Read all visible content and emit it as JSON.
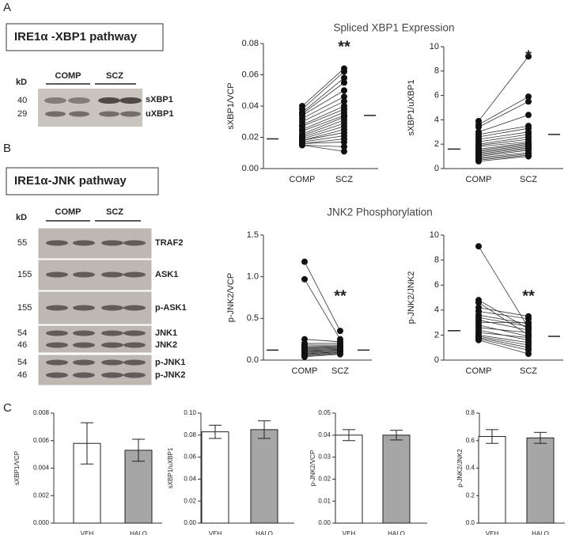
{
  "figure": {
    "panels": [
      "A",
      "B",
      "C"
    ],
    "pathway_titles": [
      "IRE1α -XBP1 pathway",
      "IRE1α-JNK pathway"
    ],
    "section_titles": [
      "Spliced XBP1 Expression",
      "JNK2 Phosphorylation"
    ],
    "blot_a": {
      "kd": "kD",
      "groups": [
        "COMP",
        "SCZ"
      ],
      "markers": [
        "40",
        "29"
      ],
      "bands": [
        "sXBP1",
        "uXBP1"
      ]
    },
    "blot_b": {
      "kd": "kD",
      "groups": [
        "COMP",
        "SCZ"
      ],
      "markers": [
        "55",
        "155",
        "155",
        "54",
        "46",
        "54",
        "46"
      ],
      "bands": [
        "TRAF2",
        "ASK1",
        "p-ASK1",
        "JNK1",
        "JNK2",
        "p-JNK1",
        "p-JNK2"
      ]
    }
  },
  "chart_data": [
    {
      "type": "paired",
      "ylabel": "sXBP1/VCP",
      "categories": [
        "COMP",
        "SCZ"
      ],
      "pairs": [
        [
          0.04,
          0.064
        ],
        [
          0.038,
          0.062
        ],
        [
          0.036,
          0.058
        ],
        [
          0.035,
          0.055
        ],
        [
          0.034,
          0.05
        ],
        [
          0.032,
          0.046
        ],
        [
          0.03,
          0.043
        ],
        [
          0.028,
          0.04
        ],
        [
          0.027,
          0.038
        ],
        [
          0.025,
          0.036
        ],
        [
          0.024,
          0.034
        ],
        [
          0.022,
          0.033
        ],
        [
          0.021,
          0.031
        ],
        [
          0.02,
          0.029
        ],
        [
          0.019,
          0.027
        ],
        [
          0.018,
          0.025
        ],
        [
          0.018,
          0.023
        ],
        [
          0.017,
          0.021
        ],
        [
          0.016,
          0.019
        ],
        [
          0.016,
          0.017
        ],
        [
          0.015,
          0.014
        ],
        [
          0.015,
          0.011
        ]
      ],
      "means": [
        0.019,
        0.034
      ],
      "significance": "**",
      "ylim": [
        0,
        0.08
      ],
      "yticks": [
        {
          "value": 0,
          "label": "0.00"
        },
        0.02,
        0.04,
        0.06,
        0.08
      ]
    },
    {
      "type": "paired",
      "ylabel": "sXBP1/uXBP1",
      "categories": [
        "COMP",
        "SCZ"
      ],
      "pairs": [
        [
          3.9,
          9.2
        ],
        [
          3.6,
          5.9
        ],
        [
          3.4,
          5.5
        ],
        [
          3.0,
          4.4
        ],
        [
          2.8,
          3.5
        ],
        [
          2.6,
          3.3
        ],
        [
          2.4,
          3.0
        ],
        [
          2.2,
          2.8
        ],
        [
          2.0,
          2.6
        ],
        [
          1.9,
          2.4
        ],
        [
          1.8,
          2.2
        ],
        [
          1.6,
          2.1
        ],
        [
          1.5,
          2.0
        ],
        [
          1.4,
          1.9
        ],
        [
          1.3,
          1.8
        ],
        [
          1.2,
          1.7
        ],
        [
          1.1,
          1.6
        ],
        [
          1.0,
          1.5
        ],
        [
          0.9,
          1.3
        ],
        [
          0.8,
          1.2
        ],
        [
          0.7,
          1.1
        ],
        [
          0.6,
          1.0
        ]
      ],
      "means": [
        1.6,
        2.8
      ],
      "significance": "*",
      "ylim": [
        0,
        10
      ],
      "yticks": [
        0,
        2,
        4,
        6,
        8,
        10
      ]
    },
    {
      "type": "paired",
      "ylabel": "p-JNK2/VCP",
      "categories": [
        "COMP",
        "SCZ"
      ],
      "pairs": [
        [
          1.18,
          0.35
        ],
        [
          0.97,
          0.25
        ],
        [
          0.25,
          0.22
        ],
        [
          0.2,
          0.2
        ],
        [
          0.18,
          0.18
        ],
        [
          0.16,
          0.17
        ],
        [
          0.15,
          0.16
        ],
        [
          0.14,
          0.15
        ],
        [
          0.13,
          0.14
        ],
        [
          0.12,
          0.13
        ],
        [
          0.11,
          0.12
        ],
        [
          0.1,
          0.12
        ],
        [
          0.09,
          0.11
        ],
        [
          0.08,
          0.1
        ],
        [
          0.07,
          0.1
        ],
        [
          0.06,
          0.09
        ],
        [
          0.05,
          0.08
        ],
        [
          0.04,
          0.07
        ]
      ],
      "means": [
        0.12,
        0.12
      ],
      "significance": "**",
      "ylim": [
        0,
        1.5
      ],
      "yticks": [
        {
          "value": 0,
          "label": "0.0"
        },
        0.5,
        {
          "value": 1,
          "label": "1.0"
        },
        1.5
      ]
    },
    {
      "type": "paired",
      "ylabel": "p-JNK2/JNK2",
      "categories": [
        "COMP",
        "SCZ"
      ],
      "pairs": [
        [
          9.1,
          2.6
        ],
        [
          4.8,
          2.5
        ],
        [
          4.6,
          2.0
        ],
        [
          4.2,
          3.5
        ],
        [
          3.9,
          3.3
        ],
        [
          3.6,
          2.9
        ],
        [
          3.4,
          2.7
        ],
        [
          3.2,
          2.4
        ],
        [
          3.0,
          3.0
        ],
        [
          2.8,
          1.9
        ],
        [
          2.6,
          2.2
        ],
        [
          2.4,
          1.6
        ],
        [
          2.2,
          1.8
        ],
        [
          2.0,
          1.4
        ],
        [
          1.9,
          1.2
        ],
        [
          1.8,
          1.0
        ],
        [
          1.7,
          0.8
        ],
        [
          1.6,
          0.5
        ]
      ],
      "means": [
        2.35,
        1.9
      ],
      "significance": "**",
      "ylim": [
        0,
        10
      ],
      "yticks": [
        0,
        2,
        4,
        6,
        8,
        10
      ]
    },
    {
      "type": "bar",
      "ylabel": "sXBP1/VCP",
      "categories": [
        "VEH",
        "HALO"
      ],
      "values": [
        0.0058,
        0.0053
      ],
      "errors": [
        0.0015,
        0.0008
      ],
      "colors": [
        "#ffffff",
        "#a6a6a6"
      ],
      "ylim": [
        0,
        0.008
      ],
      "yticks": [
        {
          "value": 0,
          "label": "0.000"
        },
        0.002,
        0.004,
        0.006,
        0.008
      ]
    },
    {
      "type": "bar",
      "ylabel": "sXBP1/uXBP1",
      "categories": [
        "VEH",
        "HALO"
      ],
      "values": [
        0.083,
        0.085
      ],
      "errors": [
        0.006,
        0.008
      ],
      "colors": [
        "#ffffff",
        "#a6a6a6"
      ],
      "ylim": [
        0,
        0.1
      ],
      "yticks": [
        {
          "value": 0,
          "label": "0.00"
        },
        0.02,
        0.04,
        0.06,
        0.08,
        {
          "value": 0.1,
          "label": "0.10"
        }
      ]
    },
    {
      "type": "bar",
      "ylabel": "p-JNK2/VCP",
      "categories": [
        "VEH",
        "HALO"
      ],
      "values": [
        0.04,
        0.04
      ],
      "errors": [
        0.0025,
        0.0022
      ],
      "colors": [
        "#ffffff",
        "#a6a6a6"
      ],
      "ylim": [
        0,
        0.05
      ],
      "yticks": [
        {
          "value": 0,
          "label": "0.00"
        },
        0.01,
        0.02,
        0.03,
        0.04,
        0.05
      ]
    },
    {
      "type": "bar",
      "ylabel": "p-JNK2/JNK2",
      "categories": [
        "VEH",
        "HALO"
      ],
      "values": [
        0.63,
        0.62
      ],
      "errors": [
        0.05,
        0.04
      ],
      "colors": [
        "#ffffff",
        "#a6a6a6"
      ],
      "ylim": [
        0,
        0.8
      ],
      "yticks": [
        {
          "value": 0,
          "label": "0.0"
        },
        0.2,
        0.4,
        0.6,
        0.8
      ]
    }
  ]
}
